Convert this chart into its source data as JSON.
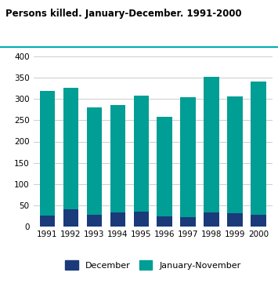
{
  "title": "Persons killed. January-December. 1991-2000",
  "years": [
    1991,
    1992,
    1993,
    1994,
    1995,
    1996,
    1997,
    1998,
    1999,
    2000
  ],
  "december": [
    25,
    40,
    27,
    33,
    34,
    24,
    21,
    33,
    31,
    27
  ],
  "jan_nov": [
    295,
    287,
    253,
    252,
    274,
    234,
    284,
    320,
    276,
    315
  ],
  "december_color": "#1a3a7a",
  "jan_nov_color": "#009e94",
  "ylim": [
    0,
    400
  ],
  "yticks": [
    0,
    50,
    100,
    150,
    200,
    250,
    300,
    350,
    400
  ],
  "ylabel": "",
  "xlabel": "",
  "legend_dec": "December",
  "legend_jn": "January-November",
  "background_color": "#ffffff",
  "grid_color": "#cccccc",
  "title_color": "#000000",
  "title_fontsize": 8.5,
  "bar_width": 0.65,
  "tick_fontsize": 7.5,
  "legend_fontsize": 8,
  "title_line_color": "#00b0b0"
}
